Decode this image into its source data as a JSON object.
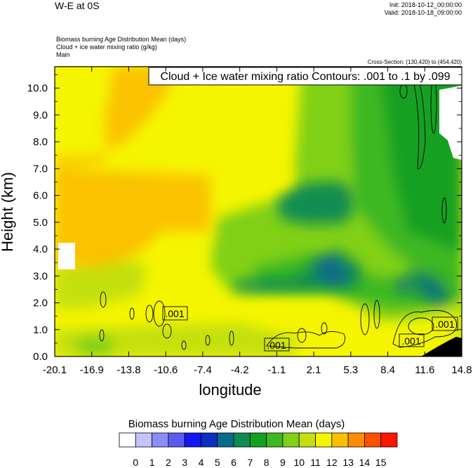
{
  "header": {
    "title": "W-E at 0S",
    "init": "Init: 2018-10-12_00:00:00",
    "valid": "Valid: 2018-10-18_09:00:00",
    "field1": "Biomass burning Age Distribution Mean   (days)",
    "field2": "Cloud + ice water mixing ratio   (g/kg)",
    "field3": "Main",
    "cross_section": "Cross-Section: (130,420) to (454,420)"
  },
  "chart_data": {
    "type": "heatmap",
    "title": "Cloud + Ice water mixing ratio Contours: .001 to .1 by .099",
    "xlabel": "longitude",
    "ylabel": "Height (km)",
    "xlim": [
      -20.1,
      14.8
    ],
    "ylim": [
      0.0,
      10.8
    ],
    "x_ticks": [
      "-20.1",
      "-16.9",
      "-13.8",
      "-10.6",
      "-7.4",
      "-4.2",
      "-1.1",
      "2.1",
      "5.3",
      "8.4",
      "11.6",
      "14.8"
    ],
    "y_ticks": [
      "0.0",
      "1.0",
      "2.0",
      "3.0",
      "4.0",
      "5.0",
      "6.0",
      "7.0",
      "8.0",
      "9.0",
      "10.0"
    ],
    "contour_labels": [
      ".001",
      ".001",
      ".001",
      ".001"
    ],
    "colorbar": {
      "title": "Biomass burning Age Distribution Mean  (days)",
      "labels": [
        "0",
        "1",
        "2",
        "3",
        "4",
        "5",
        "6",
        "7",
        "8",
        "9",
        "10",
        "11",
        "12",
        "13",
        "14",
        "15"
      ],
      "colors": [
        "#ffffff",
        "#c4c4fc",
        "#8c8cf7",
        "#5b5bf0",
        "#1515f0",
        "#0a2ec0",
        "#0b6b8a",
        "#0f8a55",
        "#14a020",
        "#3cb820",
        "#80d018",
        "#c4e010",
        "#f5f500",
        "#fbc000",
        "#ff8c00",
        "#ff5000",
        "#ff1500"
      ]
    }
  }
}
